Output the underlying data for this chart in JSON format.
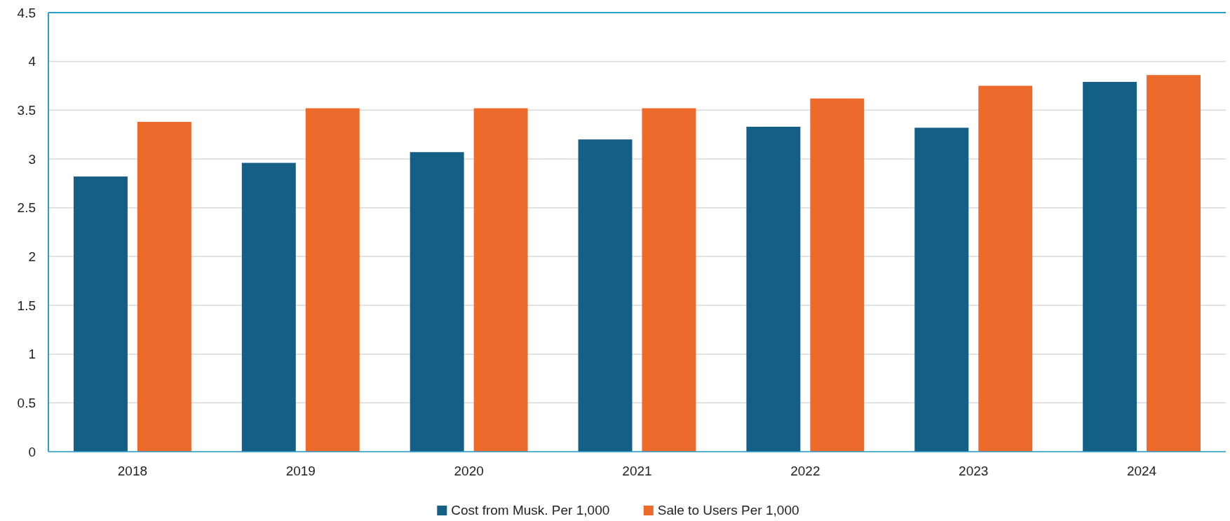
{
  "chart_data": {
    "type": "bar",
    "categories": [
      "2018",
      "2019",
      "2020",
      "2021",
      "2022",
      "2023",
      "2024"
    ],
    "series": [
      {
        "name": "Cost from Musk. Per 1,000",
        "color": "#135f86",
        "values": [
          2.82,
          2.96,
          3.07,
          3.2,
          3.33,
          3.32,
          3.79
        ]
      },
      {
        "name": "Sale to Users Per 1,000",
        "color": "#ec6a2c",
        "values": [
          3.38,
          3.52,
          3.52,
          3.52,
          3.62,
          3.75,
          3.86
        ]
      }
    ],
    "ylim": [
      0,
      4.5
    ],
    "yticks": [
      0,
      0.5,
      1,
      1.5,
      2,
      2.5,
      3,
      3.5,
      4,
      4.5
    ],
    "grid": "y",
    "legend": "bottom"
  }
}
